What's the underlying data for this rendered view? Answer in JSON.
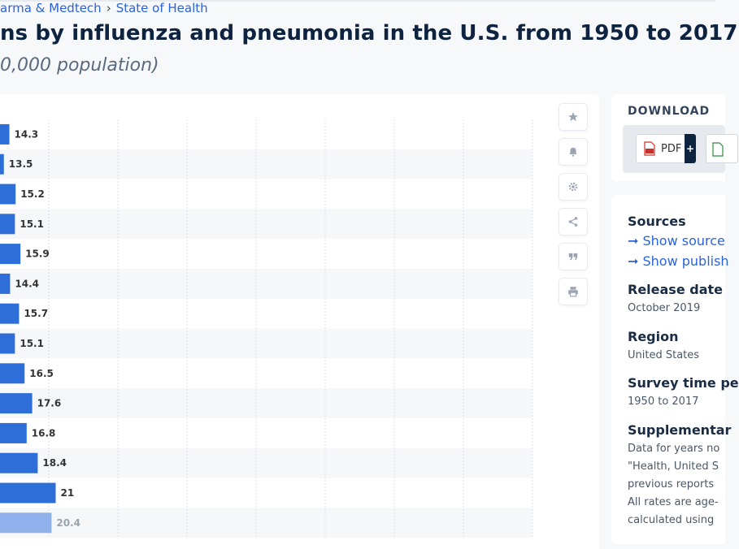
{
  "breadcrumb": {
    "items": [
      "arma & Medtech",
      "State of Health"
    ],
    "separator": "›"
  },
  "title": "ns by influenza and pneumonia in the U.S. from 1950 to 2017",
  "subtitle": "0,000 population)",
  "toolbar": {
    "icons": [
      "star-icon",
      "bell-icon",
      "gear-icon",
      "share-icon",
      "quote-icon",
      "print-icon"
    ]
  },
  "download": {
    "title": "DOWNLOAD",
    "pdf_label": "PDF",
    "pdf_plus": "+"
  },
  "info": {
    "sources_title": "Sources",
    "show_sources": "➞ Show source",
    "show_publisher": "➞ Show publish",
    "release_date_title": "Release date",
    "release_date": "October 2019",
    "region_title": "Region",
    "region": "United States",
    "survey_title": "Survey time pe",
    "survey_period": "1950 to 2017",
    "supplementary_title": "Supplementar",
    "supplementary_lines": [
      "Data for years no",
      "\"Health, United S",
      "previous reports",
      "All rates are age-",
      "calculated using"
    ]
  },
  "colors": {
    "bar": "#2d6ed8",
    "bar_faded": "#8fb0ea",
    "accent": "#2b63d9",
    "title": "#0d2340"
  },
  "chart_data": {
    "type": "bar",
    "orientation": "horizontal",
    "values": [
      14.3,
      13.5,
      15.2,
      15.1,
      15.9,
      14.4,
      15.7,
      15.1,
      16.5,
      17.6,
      16.8,
      18.4,
      21,
      20.4
    ],
    "xlim": [
      0,
      90
    ],
    "grid": true
  }
}
